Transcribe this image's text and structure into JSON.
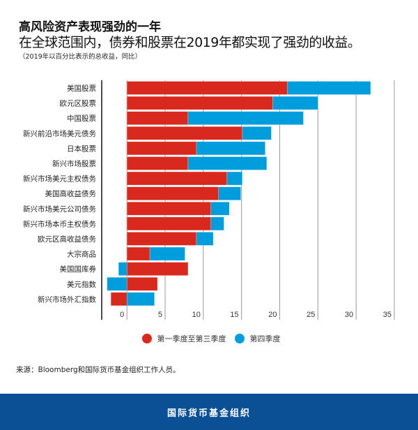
{
  "header": {
    "title": "高风险资产表现强劲的一年",
    "subtitle": "在全球范围内，债券和股票在2019年都实现了强劲的收益。",
    "note": "（2019年以百分比表示的总收益，同比）"
  },
  "chart_data": {
    "type": "bar",
    "orientation": "horizontal",
    "stacked": true,
    "categories": [
      "美国股票",
      "欧元区股票",
      "中国股票",
      "新兴前沿市场美元债务",
      "日本股票",
      "新兴市场股票",
      "新兴市场美元主权债务",
      "美国高收益债务",
      "新兴市场美元公司债务",
      "新兴市场本币主权债务",
      "欧元区高收益债务",
      "大宗商品",
      "美国国库券",
      "美元指数",
      "新兴市场外汇指数"
    ],
    "series": [
      {
        "name": "第一季度至第三季度",
        "color": "#d9281e",
        "values": [
          21.0,
          19.1,
          8.0,
          15.1,
          9.1,
          8.0,
          13.1,
          12.0,
          11.0,
          11.0,
          9.1,
          3.0,
          8.0,
          4.0,
          -2.1
        ]
      },
      {
        "name": "第四季度",
        "color": "#009ddc",
        "values": [
          10.9,
          5.9,
          15.1,
          3.8,
          9.0,
          10.3,
          2.0,
          2.9,
          2.4,
          1.7,
          2.2,
          4.6,
          -1.1,
          -2.6,
          3.6
        ]
      }
    ],
    "xticks": [
      0,
      5,
      10,
      15,
      20,
      25,
      30,
      35
    ],
    "xlim": [
      -3.3,
      35
    ],
    "grid": true,
    "legend": "bottom-center",
    "xlabel": "",
    "ylabel": ""
  },
  "source": "来源：Bloomberg和国际货币基金组织工作人员。",
  "footer": "国际货币基金组织"
}
